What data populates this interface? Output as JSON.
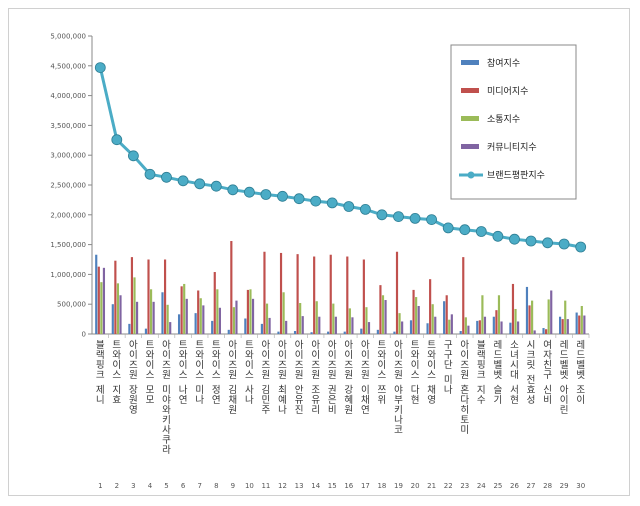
{
  "chart_data": {
    "type": "bar",
    "categories": [
      "블랙핑크 제니",
      "트와이스 지효",
      "아이즈원 장원영",
      "트와이스 모모",
      "아이즈원 미야와키사쿠라",
      "트와이스 나연",
      "트와이스 미나",
      "트와이스 정연",
      "아이즈원 김채원",
      "트와이스 사나",
      "아이즈원 김민주",
      "아이즈원 최예나",
      "아이즈원 안유진",
      "아이즈원 조유리",
      "아이즈원 권은비",
      "아이즈원 강혜원",
      "아이즈원 이채연",
      "트와이스 쯔위",
      "아이즈원 야부키나코",
      "트와이스 다현",
      "트와이스 채영",
      "구구단 미나",
      "아이즈원 혼다히토미",
      "블랙핑크 지수",
      "레드벨벳 슬기",
      "소녀시대 서현",
      "시크릿 전효성",
      "여자친구 신비",
      "레드벨벳 아이린",
      "레드벨벳 조이"
    ],
    "numbers": [
      "1",
      "2",
      "3",
      "4",
      "5",
      "6",
      "7",
      "8",
      "9",
      "10",
      "11",
      "12",
      "13",
      "14",
      "15",
      "16",
      "17",
      "18",
      "19",
      "20",
      "21",
      "22",
      "23",
      "24",
      "25",
      "26",
      "27",
      "28",
      "29",
      "30"
    ],
    "ylim": [
      0,
      5000000
    ],
    "yticks": [
      "0",
      "500,000",
      "1,000,000",
      "1,500,000",
      "2,000,000",
      "2,500,000",
      "3,000,000",
      "3,500,000",
      "4,000,000",
      "4,500,000",
      "5,000,000"
    ],
    "series": [
      {
        "name": "참여지수",
        "color": "#4f81bd",
        "kind": "bar",
        "values": [
          1330000,
          500000,
          170000,
          90000,
          700000,
          330000,
          350000,
          220000,
          70000,
          260000,
          170000,
          40000,
          50000,
          30000,
          40000,
          40000,
          90000,
          70000,
          40000,
          230000,
          180000,
          550000,
          50000,
          220000,
          290000,
          190000,
          790000,
          100000,
          290000,
          360000
        ]
      },
      {
        "name": "미디어지수",
        "color": "#c0504d",
        "kind": "bar",
        "values": [
          1130000,
          1230000,
          1290000,
          1250000,
          1250000,
          800000,
          730000,
          1040000,
          1560000,
          740000,
          1380000,
          1360000,
          1340000,
          1300000,
          1330000,
          1300000,
          1250000,
          820000,
          1380000,
          740000,
          920000,
          650000,
          1290000,
          230000,
          400000,
          840000,
          480000,
          80000,
          250000,
          310000
        ]
      },
      {
        "name": "소통지수",
        "color": "#9bbb59",
        "kind": "bar",
        "values": [
          870000,
          850000,
          950000,
          750000,
          490000,
          840000,
          600000,
          750000,
          450000,
          750000,
          510000,
          700000,
          520000,
          550000,
          510000,
          430000,
          450000,
          650000,
          350000,
          620000,
          500000,
          240000,
          280000,
          650000,
          650000,
          420000,
          560000,
          580000,
          560000,
          470000
        ]
      },
      {
        "name": "커뮤니티지수",
        "color": "#8064a2",
        "kind": "bar",
        "values": [
          1110000,
          650000,
          540000,
          540000,
          200000,
          590000,
          480000,
          440000,
          560000,
          590000,
          270000,
          220000,
          300000,
          290000,
          290000,
          280000,
          200000,
          570000,
          210000,
          470000,
          290000,
          330000,
          140000,
          290000,
          210000,
          210000,
          60000,
          730000,
          250000,
          310000
        ]
      },
      {
        "name": "브랜드평판지수",
        "color": "#4bacc6",
        "kind": "line",
        "values": [
          4470000,
          3260000,
          2990000,
          2680000,
          2630000,
          2570000,
          2520000,
          2480000,
          2420000,
          2380000,
          2340000,
          2310000,
          2270000,
          2230000,
          2200000,
          2140000,
          2090000,
          2000000,
          1970000,
          1940000,
          1920000,
          1780000,
          1750000,
          1720000,
          1640000,
          1590000,
          1560000,
          1530000,
          1510000,
          1460000
        ]
      }
    ],
    "legend_position": "top-right"
  }
}
